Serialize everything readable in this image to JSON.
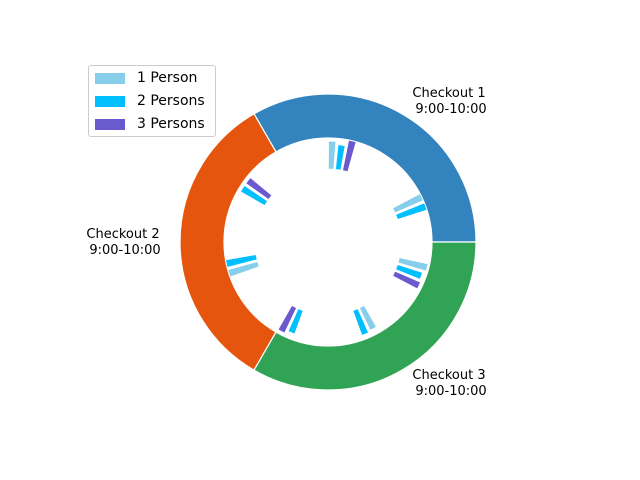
{
  "chart_data": {
    "type": "pie",
    "variant": "nested-donut",
    "outer": {
      "segments": [
        {
          "line1": "Checkout 1",
          "line2": "9:00-10:00",
          "value": 1,
          "color": "#3283BE"
        },
        {
          "line1": "Checkout 2",
          "line2": "9:00-10:00",
          "value": 1,
          "color": "#E6550D"
        },
        {
          "line1": "Checkout 3",
          "line2": "9:00-10:00",
          "value": 1,
          "color": "#31A354"
        }
      ]
    },
    "inner": {
      "series_colors": [
        "#87CEEB",
        "#00BFFF",
        "#6A5ACD"
      ],
      "groups": [
        {
          "checkout": "Checkout 1",
          "interval": 1,
          "bars": [
            0.9,
            0.8,
            1.0
          ]
        },
        {
          "checkout": "Checkout 1",
          "interval": 2,
          "bars": [
            1.0,
            1.0,
            0.0
          ]
        },
        {
          "checkout": "Checkout 2",
          "interval": 1,
          "bars": [
            0.0,
            0.9,
            0.9
          ]
        },
        {
          "checkout": "Checkout 2",
          "interval": 2,
          "bars": [
            1.0,
            1.0,
            0.0
          ]
        },
        {
          "checkout": "Checkout 3",
          "interval": 1,
          "bars": [
            0.0,
            0.8,
            0.9
          ]
        },
        {
          "checkout": "Checkout 3",
          "interval": 2,
          "bars": [
            0.8,
            0.85,
            0.0
          ]
        },
        {
          "checkout": "Checkout 3",
          "interval": 3,
          "bars": [
            0.95,
            0.85,
            0.9
          ]
        }
      ]
    },
    "legend": {
      "placement": "upper-left",
      "entries": [
        {
          "label": "1 Person",
          "color": "#87CEEB"
        },
        {
          "label": "2 Persons",
          "color": "#00BFFF"
        },
        {
          "label": "3 Persons",
          "color": "#6A5ACD"
        }
      ]
    }
  }
}
